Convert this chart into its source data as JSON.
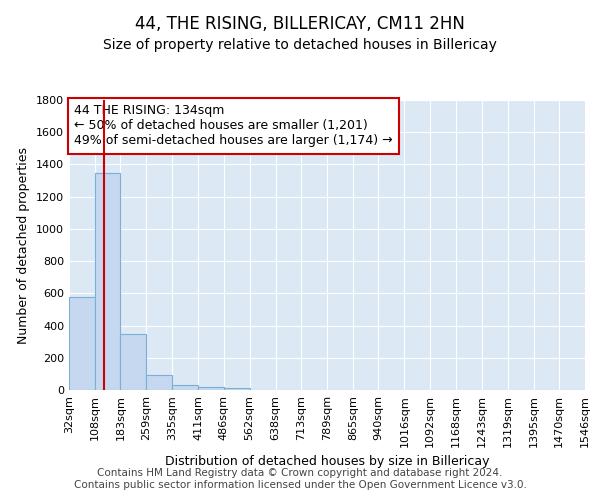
{
  "title": "44, THE RISING, BILLERICAY, CM11 2HN",
  "subtitle": "Size of property relative to detached houses in Billericay",
  "xlabel": "Distribution of detached houses by size in Billericay",
  "ylabel": "Number of detached properties",
  "bar_values": [
    580,
    1350,
    350,
    95,
    30,
    20,
    15,
    0,
    0,
    0,
    0,
    0,
    0,
    0,
    0,
    0,
    0,
    0,
    0,
    0
  ],
  "bin_edges": [
    32,
    108,
    183,
    259,
    335,
    411,
    486,
    562,
    638,
    713,
    789,
    865,
    940,
    1016,
    1092,
    1168,
    1243,
    1319,
    1395,
    1470,
    1546
  ],
  "tick_labels": [
    "32sqm",
    "108sqm",
    "183sqm",
    "259sqm",
    "335sqm",
    "411sqm",
    "486sqm",
    "562sqm",
    "638sqm",
    "713sqm",
    "789sqm",
    "865sqm",
    "940sqm",
    "1016sqm",
    "1092sqm",
    "1168sqm",
    "1243sqm",
    "1319sqm",
    "1395sqm",
    "1470sqm",
    "1546sqm"
  ],
  "bar_color": "#c5d8f0",
  "bar_edge_color": "#7bafd4",
  "bar_edge_width": 0.8,
  "grid_color": "#ffffff",
  "bg_color": "#dce9f5",
  "vline_x": 134,
  "vline_color": "#cc0000",
  "annotation_text": "44 THE RISING: 134sqm\n← 50% of detached houses are smaller (1,201)\n49% of semi-detached houses are larger (1,174) →",
  "annotation_box_color": "#ffffff",
  "annotation_border_color": "#cc0000",
  "ylim": [
    0,
    1800
  ],
  "yticks": [
    0,
    200,
    400,
    600,
    800,
    1000,
    1200,
    1400,
    1600,
    1800
  ],
  "footer": "Contains HM Land Registry data © Crown copyright and database right 2024.\nContains public sector information licensed under the Open Government Licence v3.0.",
  "title_fontsize": 12,
  "subtitle_fontsize": 10,
  "xlabel_fontsize": 9,
  "ylabel_fontsize": 9,
  "tick_fontsize": 8,
  "annotation_fontsize": 9,
  "footer_fontsize": 7.5
}
